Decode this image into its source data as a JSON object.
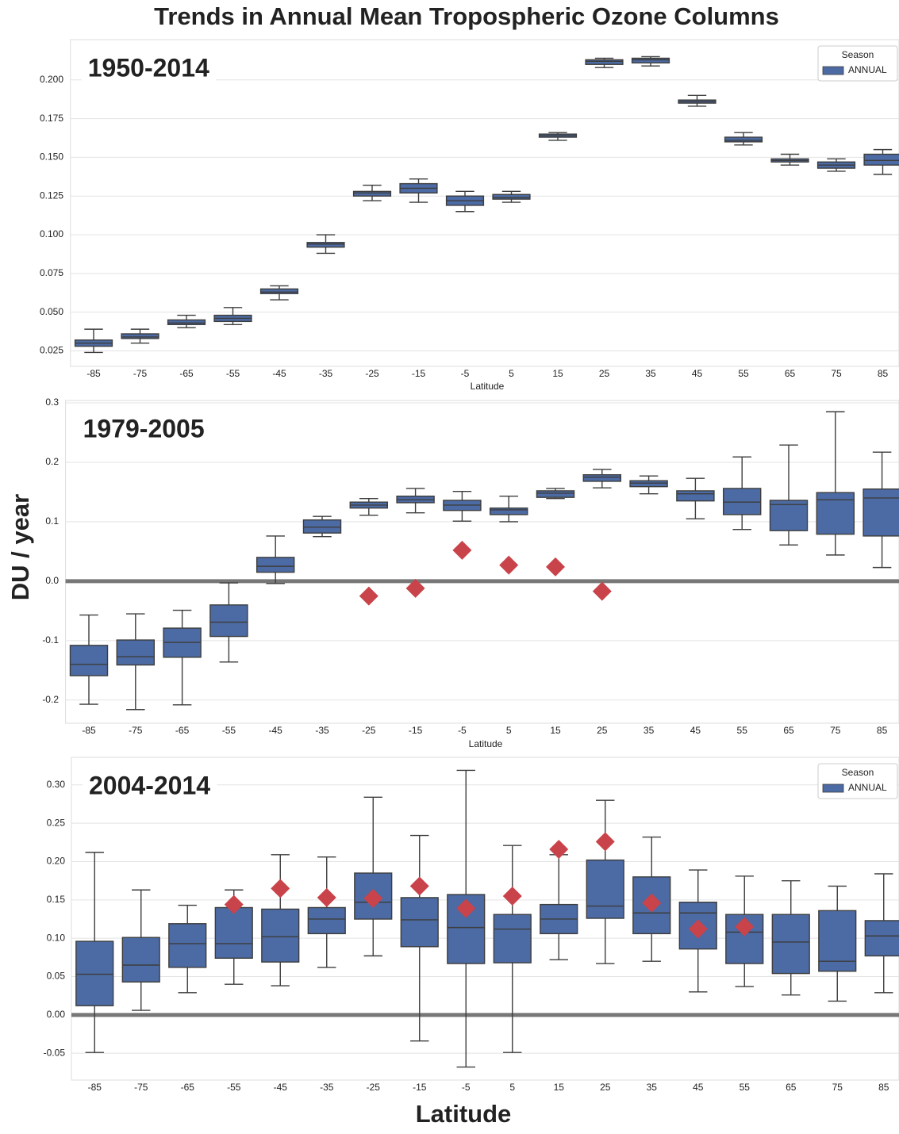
{
  "title": "Trends in Annual Mean Tropospheric Ozone Columns",
  "ylabel": "DU / year",
  "chart_data": [
    {
      "type": "box",
      "label": "1950-2014",
      "xlabel": "Latitude",
      "categories": [
        "-85",
        "-75",
        "-65",
        "-55",
        "-45",
        "-35",
        "-25",
        "-15",
        "-5",
        "5",
        "15",
        "25",
        "35",
        "45",
        "55",
        "65",
        "75",
        "85"
      ],
      "ylim": [
        0.015,
        0.226
      ],
      "yticks": [
        0.025,
        {
          "value": 0.05,
          "label": "0.050"
        },
        0.075,
        {
          "value": 0.1,
          "label": "0.100"
        },
        0.125,
        {
          "value": 0.15,
          "label": "0.150"
        },
        0.175,
        {
          "value": 0.2,
          "label": "0.200"
        }
      ],
      "grid": true,
      "legend": {
        "title": "Season",
        "loc": "upper right"
      },
      "series": [
        {
          "name": "ANNUAL",
          "color": "#4c6aa3",
          "whislo": [
            0.024,
            0.03,
            0.04,
            0.042,
            0.058,
            0.088,
            0.122,
            0.121,
            0.115,
            0.121,
            0.161,
            0.208,
            0.209,
            0.183,
            0.158,
            0.145,
            0.141,
            0.139
          ],
          "q1": [
            0.028,
            0.033,
            0.042,
            0.044,
            0.062,
            0.092,
            0.125,
            0.127,
            0.119,
            0.123,
            0.163,
            0.21,
            0.211,
            0.185,
            0.16,
            0.147,
            0.143,
            0.145
          ],
          "med": [
            0.03,
            0.034,
            0.043,
            0.046,
            0.063,
            0.094,
            0.127,
            0.13,
            0.122,
            0.124,
            0.164,
            0.212,
            0.213,
            0.186,
            0.161,
            0.148,
            0.145,
            0.148
          ],
          "q3": [
            0.032,
            0.036,
            0.045,
            0.048,
            0.065,
            0.095,
            0.128,
            0.133,
            0.125,
            0.126,
            0.165,
            0.213,
            0.214,
            0.187,
            0.163,
            0.149,
            0.147,
            0.152
          ],
          "whishi": [
            0.039,
            0.039,
            0.048,
            0.053,
            0.067,
            0.1,
            0.132,
            0.136,
            0.128,
            0.128,
            0.166,
            0.214,
            0.215,
            0.19,
            0.166,
            0.152,
            0.149,
            0.155
          ]
        }
      ]
    },
    {
      "type": "box",
      "label": "1979-2005",
      "xlabel": "Latitude",
      "categories": [
        "-85",
        "-75",
        "-65",
        "-55",
        "-45",
        "-35",
        "-25",
        "-15",
        "-5",
        "5",
        "15",
        "25",
        "35",
        "45",
        "55",
        "65",
        "75",
        "85"
      ],
      "ylim": [
        -0.239,
        0.304
      ],
      "yticks": [
        -0.2,
        -0.1,
        {
          "value": 0,
          "label": "0.0"
        },
        0.1,
        0.2,
        0.3
      ],
      "grid": true,
      "hline": 0,
      "series": [
        {
          "name": "ANNUAL",
          "color": "#4c6aa3",
          "whislo": [
            -0.207,
            -0.216,
            -0.208,
            -0.136,
            -0.004,
            0.075,
            0.111,
            0.115,
            0.101,
            0.1,
            0.139,
            0.157,
            0.147,
            0.105,
            0.087,
            0.061,
            0.044,
            0.023
          ],
          "q1": [
            -0.159,
            -0.141,
            -0.128,
            -0.093,
            0.015,
            0.081,
            0.123,
            0.132,
            0.119,
            0.112,
            0.141,
            0.168,
            0.159,
            0.135,
            0.112,
            0.085,
            0.079,
            0.076
          ],
          "med": [
            -0.14,
            -0.127,
            -0.103,
            -0.069,
            0.025,
            0.091,
            0.128,
            0.137,
            0.128,
            0.12,
            0.148,
            0.175,
            0.165,
            0.147,
            0.133,
            0.129,
            0.137,
            0.14
          ],
          "q3": [
            -0.108,
            -0.099,
            -0.079,
            -0.04,
            0.04,
            0.103,
            0.133,
            0.143,
            0.136,
            0.123,
            0.152,
            0.179,
            0.169,
            0.152,
            0.156,
            0.136,
            0.149,
            0.155
          ],
          "whishi": [
            -0.057,
            -0.055,
            -0.049,
            -0.003,
            0.076,
            0.109,
            0.139,
            0.156,
            0.151,
            0.143,
            0.156,
            0.188,
            0.177,
            0.173,
            0.209,
            0.229,
            0.285,
            0.217
          ]
        }
      ],
      "markers": {
        "color": "#c9434a",
        "values": [
          null,
          null,
          null,
          null,
          null,
          null,
          -0.025,
          -0.012,
          0.052,
          0.027,
          0.024,
          -0.017,
          null,
          null,
          null,
          null,
          null,
          null
        ]
      }
    },
    {
      "type": "box",
      "label": "2004-2014",
      "xlabel": "Latitude",
      "categories": [
        "-85",
        "-75",
        "-65",
        "-55",
        "-45",
        "-35",
        "-25",
        "-15",
        "-5",
        "5",
        "15",
        "25",
        "35",
        "45",
        "55",
        "65",
        "75",
        "85"
      ],
      "ylim": [
        -0.085,
        0.336
      ],
      "yticks": [
        -0.05,
        {
          "value": 0,
          "label": "0.00"
        },
        0.05,
        {
          "value": 0.1,
          "label": "0.10"
        },
        0.15,
        {
          "value": 0.2,
          "label": "0.20"
        },
        0.25,
        {
          "value": 0.3,
          "label": "0.30"
        }
      ],
      "grid": true,
      "hline": 0,
      "legend": {
        "title": "Season",
        "loc": "upper right"
      },
      "series": [
        {
          "name": "ANNUAL",
          "color": "#4c6aa3",
          "whislo": [
            -0.049,
            0.006,
            0.029,
            0.04,
            0.038,
            0.062,
            0.077,
            -0.034,
            -0.068,
            -0.049,
            0.072,
            0.067,
            0.07,
            0.03,
            0.037,
            0.026,
            0.018,
            0.029
          ],
          "q1": [
            0.012,
            0.043,
            0.062,
            0.074,
            0.069,
            0.106,
            0.125,
            0.089,
            0.067,
            0.068,
            0.106,
            0.126,
            0.106,
            0.086,
            0.067,
            0.054,
            0.057,
            0.077
          ],
          "med": [
            0.053,
            0.065,
            0.093,
            0.093,
            0.102,
            0.125,
            0.147,
            0.124,
            0.114,
            0.112,
            0.125,
            0.142,
            0.133,
            0.133,
            0.108,
            0.095,
            0.07,
            0.103
          ],
          "q3": [
            0.096,
            0.101,
            0.119,
            0.14,
            0.138,
            0.14,
            0.185,
            0.153,
            0.157,
            0.131,
            0.144,
            0.202,
            0.18,
            0.147,
            0.131,
            0.131,
            0.136,
            0.123
          ],
          "whishi": [
            0.212,
            0.163,
            0.143,
            0.163,
            0.209,
            0.206,
            0.284,
            0.234,
            0.319,
            0.221,
            0.209,
            0.28,
            0.232,
            0.189,
            0.181,
            0.175,
            0.168,
            0.184
          ]
        }
      ],
      "markers": {
        "color": "#c9434a",
        "values": [
          null,
          null,
          null,
          0.144,
          0.165,
          0.153,
          0.152,
          0.168,
          0.139,
          0.155,
          0.216,
          0.226,
          0.146,
          0.112,
          0.115,
          null,
          null,
          null
        ]
      }
    }
  ]
}
